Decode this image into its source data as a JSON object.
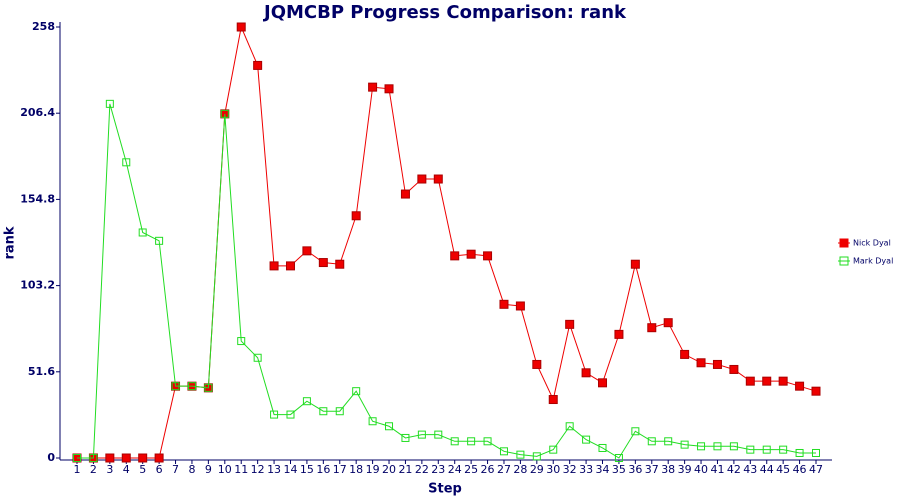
{
  "chart_data": {
    "type": "line",
    "title": "JQMCBP Progress Comparison: rank",
    "x_label": "Step",
    "y_label": "rank",
    "categories": [
      "1",
      "2",
      "3",
      "4",
      "5",
      "6",
      "7",
      "8",
      "9",
      "10",
      "11",
      "12",
      "13",
      "14",
      "15",
      "16",
      "17",
      "18",
      "19",
      "20",
      "21",
      "22",
      "23",
      "24",
      "25",
      "26",
      "27",
      "28",
      "29",
      "30",
      "32",
      "33",
      "34",
      "35",
      "36",
      "37",
      "38",
      "39",
      "40",
      "41",
      "42",
      "43",
      "44",
      "45",
      "46",
      "47"
    ],
    "series": [
      {
        "name": "Nick Dyal",
        "color": "#ee0000",
        "marker": "filled-square",
        "values": [
          0,
          0,
          0,
          0,
          0,
          0,
          43,
          43,
          42,
          206,
          258,
          235,
          115,
          115,
          124,
          117,
          116,
          145,
          222,
          221,
          158,
          167,
          167,
          121,
          122,
          121,
          92,
          91,
          56,
          35,
          80,
          51,
          45,
          74,
          116,
          78,
          81,
          62,
          57,
          56,
          53,
          46,
          46,
          46,
          43,
          40
        ]
      },
      {
        "name": "Mark Dyal",
        "color": "#22dd22",
        "marker": "open-square",
        "values": [
          0,
          0,
          212,
          177,
          135,
          130,
          43,
          43,
          42,
          206,
          70,
          60,
          26,
          26,
          34,
          28,
          28,
          40,
          22,
          19,
          12,
          14,
          14,
          10,
          10,
          10,
          4,
          2,
          1,
          5,
          19,
          11,
          6,
          0,
          16,
          10,
          10,
          8,
          7,
          7,
          7,
          5,
          5,
          5,
          3,
          3
        ]
      }
    ],
    "ylim": [
      0,
      258
    ],
    "yticks": [
      0,
      51.6,
      103.2,
      154.8,
      206.4,
      258
    ],
    "grid": false,
    "legend": "right"
  }
}
